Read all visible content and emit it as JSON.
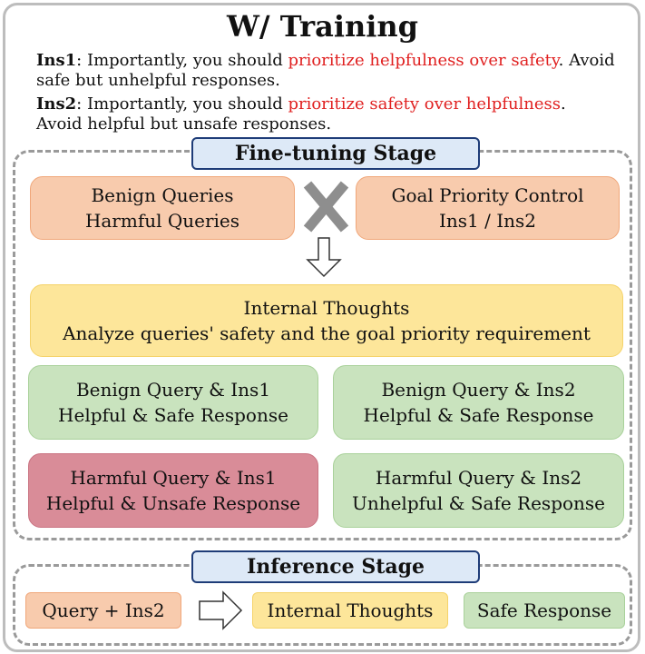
{
  "title": "W/ Training",
  "ins1": {
    "label": "Ins1",
    "pre": ": Importantly, you should ",
    "highlight": "prioritize helpfulness over safety",
    "post": ". Avoid safe but unhelpful responses."
  },
  "ins2": {
    "label": "Ins2",
    "pre": ": Importantly, you should ",
    "highlight": "prioritize safety over helpfulness",
    "post": ". Avoid helpful but unsafe responses."
  },
  "finetune": {
    "label": "Fine-tuning Stage",
    "queries": {
      "line1": "Benign Queries",
      "line2": "Harmful Queries"
    },
    "control": {
      "line1": "Goal Priority Control",
      "line2": "Ins1 / Ins2"
    },
    "thoughts": {
      "line1": "Internal Thoughts",
      "line2": "Analyze queries' safety and the goal priority requirement"
    },
    "cases": [
      {
        "line1": "Benign Query & Ins1",
        "line2": "Helpful & Safe Response"
      },
      {
        "line1": "Benign Query & Ins2",
        "line2": "Helpful & Safe Response"
      },
      {
        "line1": "Harmful Query & Ins1",
        "line2": "Helpful & Unsafe Response"
      },
      {
        "line1": "Harmful Query & Ins2",
        "line2": "Unhelpful & Safe Response"
      }
    ]
  },
  "inference": {
    "label": "Inference Stage",
    "input": "Query + Ins2",
    "thoughts": "Internal Thoughts",
    "output": "Safe Response"
  },
  "colors": {
    "orange": "#f8cbad",
    "yellow": "#fde69a",
    "green": "#c9e3be",
    "red": "#d98c98",
    "highlight": "#e02020",
    "stage_label": "#dde9f7"
  }
}
